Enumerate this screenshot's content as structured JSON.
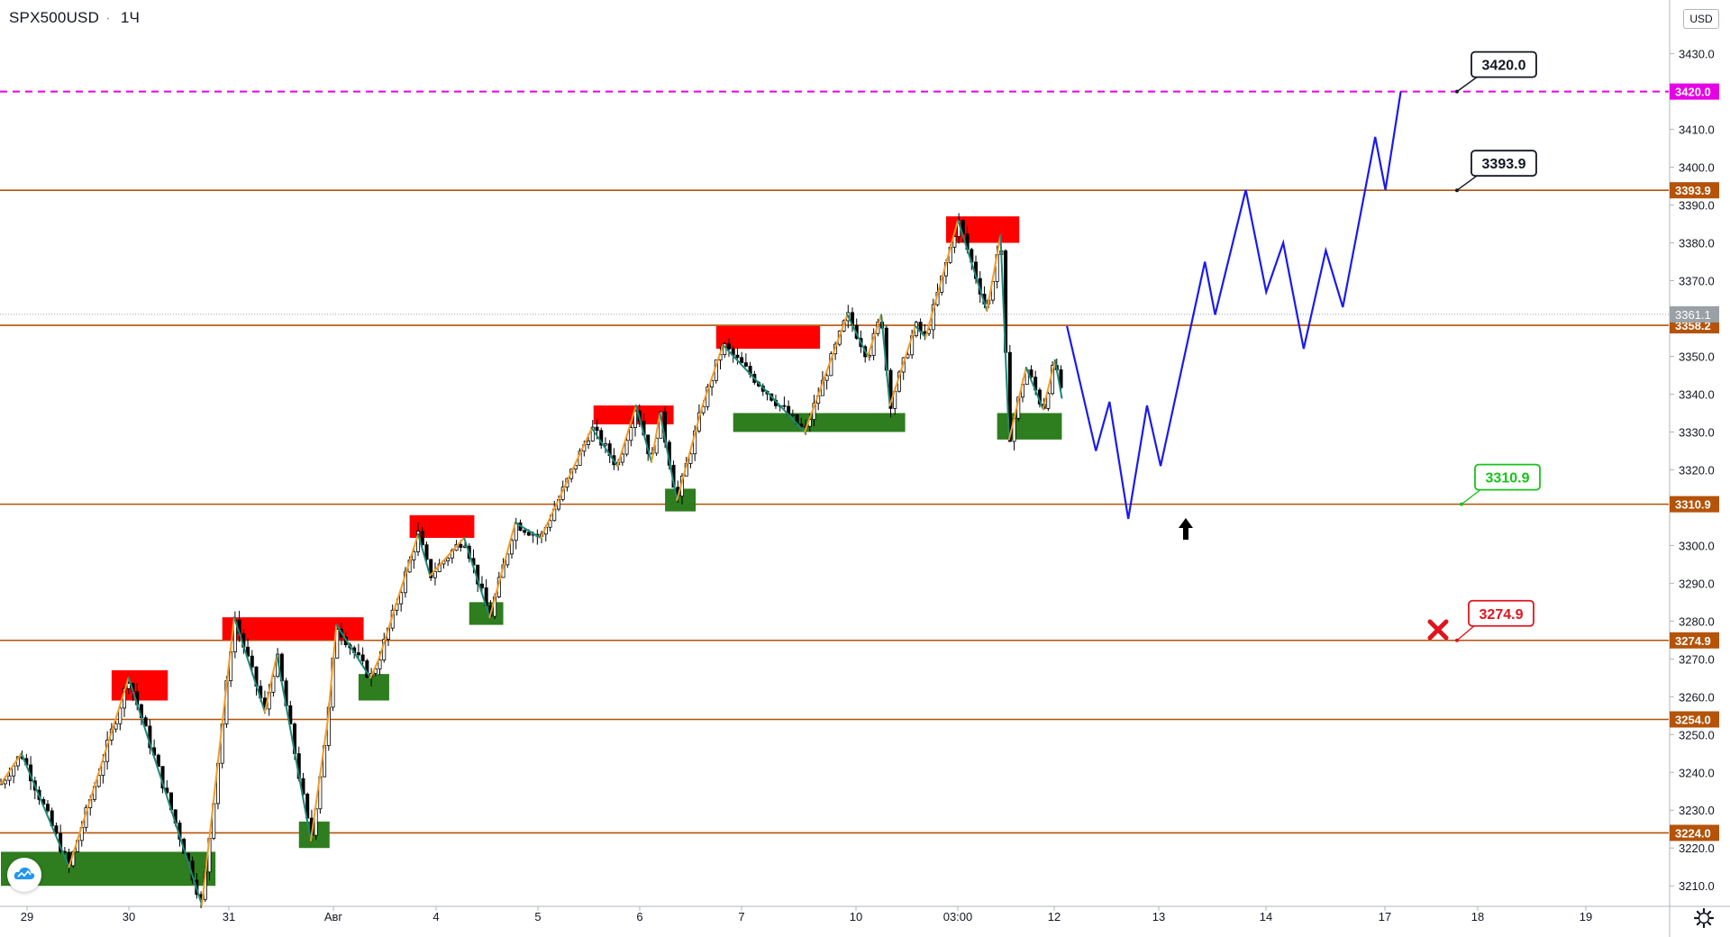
{
  "header": {
    "symbol": "SPX500USD",
    "separator": "·",
    "timeframe": "1Ч",
    "currency_button": "USD"
  },
  "colors": {
    "level_line": "#b45309",
    "level_label_bg": "#b45309",
    "target_line": "#e600e6",
    "resistance_zone": "#ff0000",
    "support_zone": "#2e7d1e",
    "zigzag_up": "#f59a23",
    "zigzag_down": "#1a8a7a",
    "forecast": "#1a1af0",
    "current_price_bg": "#9aa0a6"
  },
  "icons": {
    "logo": "tradingview-cloud-icon",
    "settings": "gear-icon",
    "arrow": "up-arrow-icon",
    "stop": "cross-icon"
  },
  "chart_data": {
    "type": "candlestick",
    "symbol": "SPX500USD",
    "timeframe": "1Ч",
    "y_range": [
      3202,
      3438
    ],
    "y_ticks": [
      3210,
      3220,
      3230,
      3240,
      3250,
      3260,
      3270,
      3280,
      3290,
      3300,
      3310,
      3320,
      3330,
      3340,
      3350,
      3360,
      3370,
      3380,
      3390,
      3400,
      3410,
      3420,
      3430
    ],
    "y_tick_labels": [
      "3210.0",
      "3220.0",
      "3230.0",
      "3240.0",
      "3250.0",
      "3260.0",
      "3270.0",
      "3280.0",
      "3290.0",
      "3300.0",
      "3310.0",
      "3320.0",
      "3330.0",
      "3340.0",
      "3350.0",
      "3360.0",
      "3370.0",
      "3380.0",
      "3390.0",
      "3400.0",
      "3410.0",
      "3420.0",
      "3430.0"
    ],
    "x_ticks": [
      "29",
      "30",
      "31",
      "Авг",
      "4",
      "5",
      "6",
      "7",
      "10",
      "03:00",
      "12",
      "13",
      "14",
      "17",
      "18",
      "19"
    ],
    "levels": [
      {
        "price": 3420.0,
        "label": "3420.0",
        "style": "dashed",
        "color": "#e600e6"
      },
      {
        "price": 3393.9,
        "label": "3393.9",
        "style": "solid",
        "color": "#b45309"
      },
      {
        "price": 3358.2,
        "label": "3358.2",
        "style": "solid",
        "color": "#b45309"
      },
      {
        "price": 3310.9,
        "label": "3310.9",
        "style": "solid",
        "color": "#b45309"
      },
      {
        "price": 3274.9,
        "label": "3274.9",
        "style": "solid",
        "color": "#b45309"
      },
      {
        "price": 3254.0,
        "label": "3254.0",
        "style": "solid",
        "color": "#b45309"
      },
      {
        "price": 3224.0,
        "label": "3224.0",
        "style": "solid",
        "color": "#b45309"
      }
    ],
    "current_price": {
      "price": 3361.1,
      "label": "3361.1"
    },
    "callouts": [
      {
        "text": "3420.0",
        "price": 3420.0,
        "color": "#131722",
        "border": "#131722"
      },
      {
        "text": "3393.9",
        "price": 3393.9,
        "color": "#131722",
        "border": "#131722"
      },
      {
        "text": "3310.9",
        "price": 3310.9,
        "color": "#17c31a",
        "border": "#17c31a"
      },
      {
        "text": "3274.9",
        "price": 3274.9,
        "color": "#e0141e",
        "border": "#e0141e"
      }
    ],
    "resistance_zones": [
      {
        "x0": 13.0,
        "x1": 19.6,
        "y0": 3259,
        "y1": 3267
      },
      {
        "x0": 26.0,
        "x1": 42.6,
        "y0": 3275,
        "y1": 3281
      },
      {
        "x0": 48.0,
        "x1": 55.6,
        "y0": 3302,
        "y1": 3308
      },
      {
        "x0": 69.6,
        "x1": 79.0,
        "y0": 3332,
        "y1": 3337
      },
      {
        "x0": 84.0,
        "x1": 96.2,
        "y0": 3352,
        "y1": 3358
      },
      {
        "x0": 111.0,
        "x1": 119.6,
        "y0": 3380,
        "y1": 3387
      }
    ],
    "support_zones": [
      {
        "x0": 0,
        "x1": 25.2,
        "y0": 3210,
        "y1": 3219
      },
      {
        "x0": 35.0,
        "x1": 38.6,
        "y0": 3220,
        "y1": 3227
      },
      {
        "x0": 42.0,
        "x1": 45.6,
        "y0": 3259,
        "y1": 3266
      },
      {
        "x0": 55.0,
        "x1": 59.0,
        "y0": 3279,
        "y1": 3285
      },
      {
        "x0": 78.0,
        "x1": 81.6,
        "y0": 3309,
        "y1": 3315
      },
      {
        "x0": 86.0,
        "x1": 106.2,
        "y0": 3330,
        "y1": 3335
      },
      {
        "x0": 117.0,
        "x1": 124.6,
        "y0": 3328,
        "y1": 3335
      }
    ],
    "zigzag": [
      [
        0,
        3237
      ],
      [
        2.4,
        3245
      ],
      [
        8,
        3215
      ],
      [
        15,
        3265
      ],
      [
        23.6,
        3205
      ],
      [
        27.4,
        3281
      ],
      [
        31,
        3256
      ],
      [
        32.4,
        3271
      ],
      [
        36.4,
        3222
      ],
      [
        38.4,
        3254
      ],
      [
        39.4,
        3279
      ],
      [
        43.4,
        3265
      ],
      [
        44.4,
        3270
      ],
      [
        49,
        3303
      ],
      [
        50.4,
        3292
      ],
      [
        54.4,
        3302
      ],
      [
        57.4,
        3281
      ],
      [
        60.4,
        3306
      ],
      [
        63.4,
        3302
      ],
      [
        69.4,
        3331
      ],
      [
        72.4,
        3321
      ],
      [
        74.6,
        3337
      ],
      [
        76.4,
        3322
      ],
      [
        77.4,
        3335
      ],
      [
        79.4,
        3312
      ],
      [
        82.4,
        3337
      ],
      [
        84.8,
        3353
      ],
      [
        94.4,
        3330
      ],
      [
        99.4,
        3361
      ],
      [
        101.8,
        3350
      ],
      [
        103.4,
        3361
      ],
      [
        104.4,
        3337
      ],
      [
        107.4,
        3358
      ],
      [
        108.6,
        3355
      ],
      [
        112.4,
        3386
      ],
      [
        115.8,
        3362
      ],
      [
        117.4,
        3382
      ],
      [
        118.4,
        3328
      ],
      [
        120.4,
        3347
      ],
      [
        122.4,
        3336
      ],
      [
        123.8,
        3349
      ],
      [
        124.6,
        3339
      ]
    ],
    "forecast_path": [
      [
        125.2,
        3358
      ],
      [
        128.6,
        3325
      ],
      [
        130.2,
        3338
      ],
      [
        132.4,
        3307
      ],
      [
        134.6,
        3337
      ],
      [
        136.2,
        3321
      ],
      [
        141.4,
        3375
      ],
      [
        142.6,
        3361
      ],
      [
        146.2,
        3394
      ],
      [
        148.6,
        3367
      ],
      [
        150.6,
        3380
      ],
      [
        153.0,
        3352
      ],
      [
        155.6,
        3378
      ],
      [
        157.6,
        3363
      ],
      [
        161.4,
        3408
      ],
      [
        162.6,
        3394
      ],
      [
        164.4,
        3420
      ]
    ],
    "arrow_target": {
      "x": 132.4,
      "price": 3307
    },
    "stop_marker": {
      "x": 162.4,
      "price": 3272
    }
  }
}
